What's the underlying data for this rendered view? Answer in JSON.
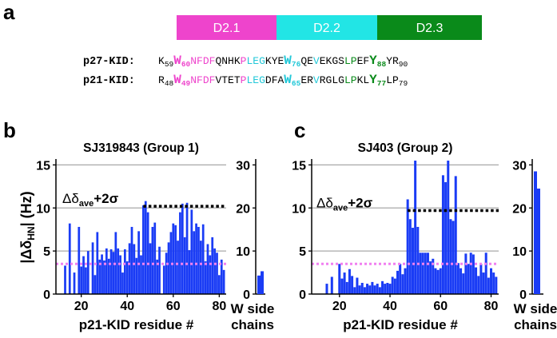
{
  "panel_a": {
    "letter": "a",
    "domains": [
      {
        "label": "D2.1",
        "color": "#ee44cc"
      },
      {
        "label": "D2.2",
        "color": "#22e5e5"
      },
      {
        "label": "D2.3",
        "color": "#0a8a1a"
      }
    ],
    "sequences": [
      {
        "label": "p27-KID:",
        "segments": [
          {
            "t": "K",
            "c": "#000000"
          },
          {
            "t": "59",
            "c": "#000000",
            "sub": true
          },
          {
            "t": "W",
            "c": "#ee44cc",
            "bold": true,
            "big": true
          },
          {
            "t": "60",
            "c": "#ee44cc",
            "sub": true,
            "bold": true
          },
          {
            "t": "NFDF",
            "c": "#ee44cc"
          },
          {
            "t": "QNHK",
            "c": "#000000"
          },
          {
            "t": "P",
            "c": "#ee44cc"
          },
          {
            "t": "LEG",
            "c": "#22c8d8"
          },
          {
            "t": "KYE",
            "c": "#000000"
          },
          {
            "t": "W",
            "c": "#22c8d8",
            "bold": true,
            "big": true
          },
          {
            "t": "76",
            "c": "#22c8d8",
            "sub": true,
            "bold": true
          },
          {
            "t": "QE",
            "c": "#000000"
          },
          {
            "t": "V",
            "c": "#22c8d8"
          },
          {
            "t": "EKGS",
            "c": "#000000"
          },
          {
            "t": "LP",
            "c": "#0a8a1a"
          },
          {
            "t": "EF",
            "c": "#000000"
          },
          {
            "t": "Y",
            "c": "#0a8a1a",
            "bold": true,
            "big": true
          },
          {
            "t": "88",
            "c": "#0a8a1a",
            "sub": true,
            "bold": true
          },
          {
            "t": "YR",
            "c": "#000000"
          },
          {
            "t": "90",
            "c": "#000000",
            "sub": true
          }
        ]
      },
      {
        "label": "p21-KID:",
        "segments": [
          {
            "t": "R",
            "c": "#000000"
          },
          {
            "t": "48",
            "c": "#000000",
            "sub": true
          },
          {
            "t": "W",
            "c": "#ee44cc",
            "bold": true,
            "big": true
          },
          {
            "t": "49",
            "c": "#ee44cc",
            "sub": true,
            "bold": true
          },
          {
            "t": "NFDF",
            "c": "#ee44cc"
          },
          {
            "t": "VTET",
            "c": "#000000"
          },
          {
            "t": "P",
            "c": "#ee44cc"
          },
          {
            "t": "LEG",
            "c": "#22c8d8"
          },
          {
            "t": "DFA",
            "c": "#000000"
          },
          {
            "t": "W",
            "c": "#22c8d8",
            "bold": true,
            "big": true
          },
          {
            "t": "65",
            "c": "#22c8d8",
            "sub": true,
            "bold": true
          },
          {
            "t": "ER",
            "c": "#000000"
          },
          {
            "t": "V",
            "c": "#22c8d8"
          },
          {
            "t": "RGLG",
            "c": "#000000"
          },
          {
            "t": "LP",
            "c": "#0a8a1a"
          },
          {
            "t": "KL",
            "c": "#000000"
          },
          {
            "t": "Y",
            "c": "#0a8a1a",
            "bold": true,
            "big": true
          },
          {
            "t": "77",
            "c": "#0a8a1a",
            "sub": true,
            "bold": true
          },
          {
            "t": "LP",
            "c": "#000000"
          },
          {
            "t": "79",
            "c": "#000000",
            "sub": true
          }
        ]
      }
    ]
  },
  "chart_data": [
    {
      "type": "bar",
      "letter": "b",
      "title": "SJ319843 (Group 1)",
      "xlabel": "p21-KID residue #",
      "ylabel": "|Δδ_HN| (Hz)",
      "xlim": [
        9,
        83
      ],
      "ylim": [
        0,
        15.5
      ],
      "xticks": [
        20,
        40,
        60,
        80
      ],
      "yticks": [
        0,
        5,
        10,
        15
      ],
      "bar_color": "#1a3cf5",
      "x": [
        13,
        15,
        17,
        19,
        20,
        21,
        22,
        23,
        25,
        26,
        27,
        28,
        29,
        30,
        31,
        32,
        33,
        34,
        35,
        36,
        37,
        38,
        39,
        40,
        41,
        42,
        43,
        44,
        45,
        46,
        47,
        48,
        49,
        50,
        51,
        52,
        53,
        54,
        56,
        57,
        58,
        59,
        60,
        61,
        62,
        63,
        64,
        65,
        66,
        67,
        68,
        69,
        70,
        71,
        72,
        73,
        74,
        75,
        76,
        77,
        78,
        79,
        80,
        81,
        82
      ],
      "values": [
        3.3,
        8.2,
        2.5,
        7.8,
        3.2,
        4.4,
        3.1,
        5.0,
        6.0,
        2.2,
        7.2,
        4.0,
        4.6,
        3.9,
        5.3,
        4.1,
        5.2,
        4.9,
        7.2,
        5.3,
        4.5,
        2.5,
        5.2,
        3.8,
        5.9,
        7.8,
        5.8,
        4.2,
        7.3,
        4.5,
        10.3,
        10.8,
        9.5,
        5.9,
        7.8,
        8.3,
        4.0,
        5.5,
        3.3,
        4.8,
        6.0,
        7.2,
        8.2,
        8.0,
        6.2,
        9.5,
        10.5,
        6.6,
        10.6,
        5.1,
        9.8,
        7.3,
        8.2,
        7.8,
        6.2,
        8.1,
        3.8,
        5.8,
        4.5,
        6.6,
        5.3,
        4.8,
        2.2,
        4.0,
        2.8
      ],
      "threshold": {
        "value": 10.2,
        "x_from": 47,
        "color": "#000000",
        "label_main": "Δδ",
        "label_sub": "ave",
        "label_tail": "+2σ"
      },
      "mean_line": {
        "value": 3.5,
        "color": "#f080f0"
      },
      "side": {
        "label_line1": "W side",
        "label_line2": "chains",
        "ylim": [
          0,
          31
        ],
        "yticks": [
          0,
          10,
          20,
          30
        ],
        "values": [
          4.3,
          5.3
        ],
        "color": "#1a3cf5"
      }
    },
    {
      "type": "bar",
      "letter": "c",
      "title": "SJ403 (Group 2)",
      "xlabel": "p21-KID residue #",
      "ylabel": "",
      "xlim": [
        9,
        83
      ],
      "ylim": [
        0,
        15.5
      ],
      "xticks": [
        20,
        40,
        60,
        80
      ],
      "yticks": [
        0,
        5,
        10,
        15
      ],
      "bar_color": "#1a3cf5",
      "x": [
        15,
        17,
        20,
        21,
        22,
        23,
        24,
        25,
        26,
        27,
        28,
        29,
        30,
        31,
        32,
        33,
        34,
        35,
        36,
        37,
        38,
        39,
        40,
        41,
        42,
        43,
        44,
        45,
        46,
        47,
        48,
        49,
        50,
        51,
        52,
        53,
        54,
        55,
        56,
        57,
        58,
        59,
        60,
        61,
        62,
        63,
        64,
        65,
        66,
        67,
        68,
        69,
        70,
        71,
        72,
        73,
        74,
        75,
        76,
        77,
        78,
        79,
        80,
        81,
        82
      ],
      "values": [
        1.2,
        2.0,
        3.5,
        1.8,
        2.5,
        1.4,
        2.9,
        2.1,
        0.8,
        1.9,
        1.0,
        1.3,
        0.8,
        1.2,
        1.0,
        1.4,
        1.0,
        1.2,
        0.8,
        1.5,
        1.2,
        1.3,
        1.2,
        2.0,
        1.8,
        2.7,
        3.5,
        2.3,
        3.0,
        11.0,
        8.7,
        7.7,
        15.5,
        7.8,
        4.8,
        4.8,
        4.8,
        4.8,
        3.8,
        4.1,
        3.0,
        2.8,
        3.0,
        13.8,
        13.0,
        15.5,
        8.7,
        8.5,
        13.7,
        3.6,
        3.0,
        2.4,
        4.7,
        3.5,
        4.8,
        4.6,
        3.1,
        2.1,
        3.5,
        2.5,
        4.8,
        1.9,
        3.0,
        2.5,
        2.0
      ],
      "threshold": {
        "value": 9.7,
        "x_from": 47,
        "color": "#000000",
        "label_main": "Δδ",
        "label_sub": "ave",
        "label_tail": "+2σ"
      },
      "mean_line": {
        "value": 3.5,
        "color": "#f080f0"
      },
      "side": {
        "label_line1": "W side",
        "label_line2": "chains",
        "ylim": [
          0,
          31
        ],
        "yticks": [
          0,
          10,
          20,
          30
        ],
        "values": [
          28.5,
          24.5
        ],
        "color": "#1a3cf5"
      }
    }
  ]
}
